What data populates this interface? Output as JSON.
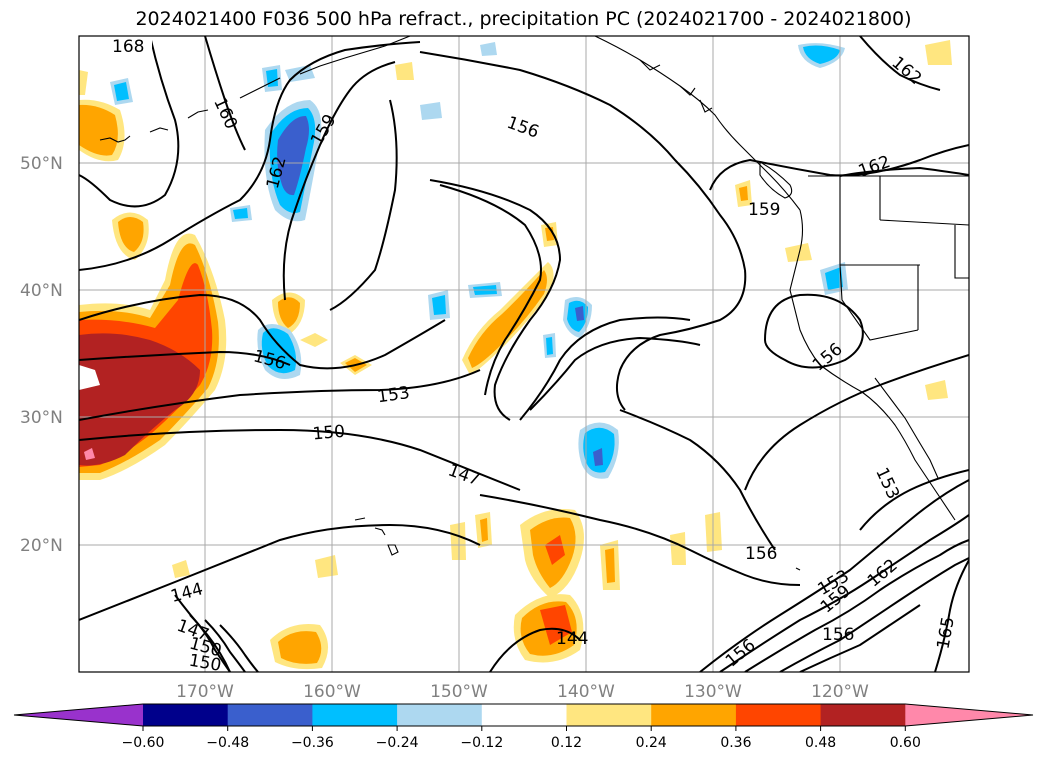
{
  "title": "2024021400 F036 500 hPa refract., precipitation PC (2024021700 - 2024021800)",
  "map": {
    "lat_labels": [
      "50°N",
      "40°N",
      "30°N",
      "20°N"
    ],
    "lon_labels": [
      "170°W",
      "160°W",
      "150°W",
      "140°W",
      "130°W",
      "120°W"
    ],
    "contour_labels": [
      "168",
      "160",
      "159",
      "162",
      "156",
      "162",
      "162",
      "159",
      "156",
      "153",
      "150",
      "147",
      "156",
      "153",
      "144",
      "147",
      "150",
      "150",
      "144",
      "156",
      "156",
      "162",
      "159",
      "153",
      "156",
      "165"
    ],
    "colors": {
      "fill_colors": [
        "#9932cc",
        "#00008b",
        "#3a5fcd",
        "#00bfff",
        "#add8f0",
        "#ffffff",
        "#ffe680",
        "#ffa500",
        "#ff4500",
        "#b22222",
        "#ff88aa"
      ]
    }
  },
  "colorbar": {
    "ticks": [
      "−0.60",
      "−0.48",
      "−0.36",
      "−0.24",
      "−0.12",
      "0.12",
      "0.24",
      "0.36",
      "0.48",
      "0.60"
    ],
    "colors": [
      "#9932cc",
      "#00008b",
      "#3a5fcd",
      "#00bfff",
      "#add8f0",
      "#ffffff",
      "#ffe680",
      "#ffa500",
      "#ff4500",
      "#b22222",
      "#ff88aa"
    ]
  }
}
